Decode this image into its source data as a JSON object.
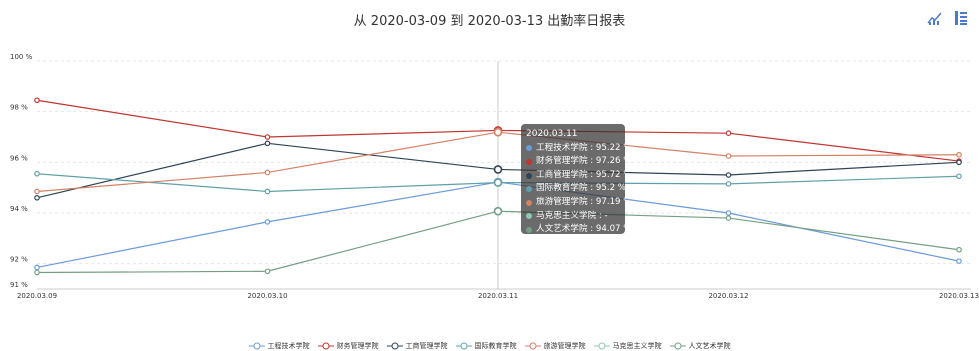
{
  "title": "从 2020-03-09 到 2020-03-13 出勤率日报表",
  "toolbox": [
    {
      "name": "switch-to-line-icon",
      "color": "#4b7ac9"
    },
    {
      "name": "data-view-icon",
      "color": "#4b7ac9"
    }
  ],
  "chart_data": {
    "type": "line",
    "title": "从 2020-03-09 到 2020-03-13 出勤率日报表",
    "x": [
      "2020.03.09",
      "2020.03.10",
      "2020.03.11",
      "2020.03.12",
      "2020.03.13"
    ],
    "ylim": [
      91,
      100
    ],
    "yticks": [
      {
        "value": 100,
        "label": "100 %"
      },
      {
        "value": 98,
        "label": "98 %"
      },
      {
        "value": 96,
        "label": "96 %"
      },
      {
        "value": 94,
        "label": "94 %"
      },
      {
        "value": 92,
        "label": "92 %"
      },
      {
        "value": 91,
        "label": "91 %"
      }
    ],
    "grid": true,
    "legend_position": "bottom",
    "series": [
      {
        "name": "工程技术学院",
        "color": "#6b9bd8",
        "values": [
          91.85,
          93.65,
          95.22,
          94.0,
          92.1
        ]
      },
      {
        "name": "财务管理学院",
        "color": "#c23531",
        "values": [
          98.45,
          97.0,
          97.26,
          97.15,
          96.05
        ]
      },
      {
        "name": "工商管理学院",
        "color": "#2f4554",
        "values": [
          94.6,
          96.75,
          95.72,
          95.5,
          96.0
        ]
      },
      {
        "name": "国际教育学院",
        "color": "#61a0a8",
        "values": [
          95.55,
          94.85,
          95.2,
          95.15,
          95.45
        ]
      },
      {
        "name": "旅游管理学院",
        "color": "#d48265",
        "values": [
          94.85,
          95.6,
          97.19,
          96.25,
          96.3
        ]
      },
      {
        "name": "马克思主义学院",
        "color": "#91c7ae",
        "values": [
          null,
          null,
          null,
          null,
          null
        ]
      },
      {
        "name": "人文艺术学院",
        "color": "#749f83",
        "values": [
          91.65,
          91.7,
          94.07,
          93.8,
          92.55
        ]
      }
    ],
    "tooltip": {
      "title": "2020.03.11",
      "x_index": 2,
      "rows": [
        {
          "label": "工程技术学院 : 95.22 %",
          "color": "#6b9bd8"
        },
        {
          "label": "财务管理学院 : 97.26 %",
          "color": "#c23531"
        },
        {
          "label": "工商管理学院 : 95.72 %",
          "color": "#2f4554"
        },
        {
          "label": "国际教育学院 : 95.2 %",
          "color": "#61a0a8"
        },
        {
          "label": "旅游管理学院 : 97.19 %",
          "color": "#d48265"
        },
        {
          "label": "马克思主义学院 : -",
          "color": "#91c7ae"
        },
        {
          "label": "人文艺术学院 : 94.07 %",
          "color": "#749f83"
        }
      ]
    }
  }
}
